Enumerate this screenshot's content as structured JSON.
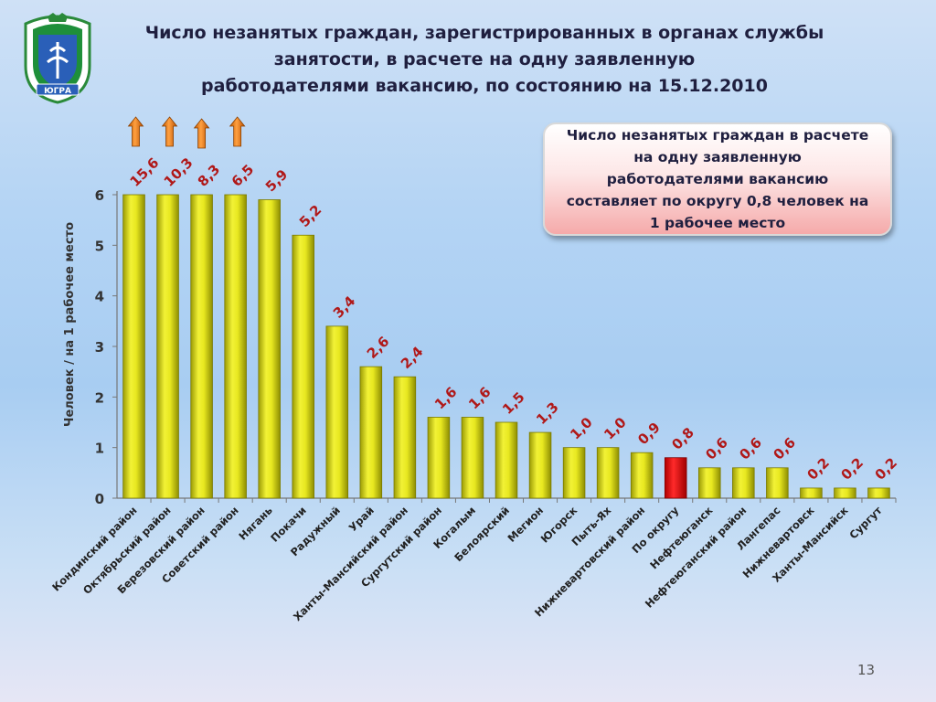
{
  "slide": {
    "title_lines": [
      "Число незанятых граждан, зарегистрированных в органах службы",
      "занятости, в расчете на одну заявленную",
      "работодателями вакансию, по состоянию на 15.12.2010"
    ],
    "callout": "Число незанятых граждан в расчете на одну заявленную работодателями вакансию составляет по округу 0,8 человек на 1 рабочее место",
    "page_number": "13",
    "emblem_text": "ЮГРА"
  },
  "colors": {
    "bar": "#e8e820",
    "bar_highlight": "#ee1111",
    "label": "#b01818",
    "arrow": "#ef8a1a"
  },
  "icons": {
    "emblem": "coat-of-arms-emblem",
    "arrow": "arrow-up-icon"
  },
  "chart_data": {
    "type": "bar",
    "title": "",
    "xlabel": "",
    "ylabel": "Человек / на 1 рабочее место",
    "ylim": [
      0,
      6
    ],
    "yticks": [
      "0",
      "1",
      "2",
      "3",
      "4",
      "5",
      "6"
    ],
    "grid": false,
    "categories": [
      "Кондинский район",
      "Октябрьский район",
      "Березовский район",
      "Советский район",
      "Нягань",
      "Покачи",
      "Радужный",
      "Урай",
      "Ханты-Мансийский район",
      "Сургутский район",
      "Когалым",
      "Белоярский",
      "Мегион",
      "Югорск",
      "Пыть-Ях",
      "Нижневартовский район",
      "По округу",
      "Нефтеюганск",
      "Нефтеюганский район",
      "Лангепас",
      "Нижневартовск",
      "Ханты-Мансийск",
      "Сургут"
    ],
    "values": [
      15.6,
      10.3,
      8.3,
      6.5,
      5.9,
      5.2,
      3.4,
      2.6,
      2.4,
      1.6,
      1.6,
      1.5,
      1.3,
      1.0,
      1.0,
      0.9,
      0.8,
      0.6,
      0.6,
      0.6,
      0.2,
      0.2,
      0.2
    ],
    "data_labels": [
      "15,6",
      "10,3",
      "8,3",
      "6,5",
      "5,9",
      "5,2",
      "3,4",
      "2,6",
      "2,4",
      "1,6",
      "1,6",
      "1,5",
      "1,3",
      "1,0",
      "1,0",
      "0,9",
      "0,8",
      "0,6",
      "0,6",
      "0,6",
      "0,2",
      "0,2",
      "0,2"
    ],
    "clipped_at_axis_max": [
      true,
      true,
      true,
      true,
      false,
      false,
      false,
      false,
      false,
      false,
      false,
      false,
      false,
      false,
      false,
      false,
      false,
      false,
      false,
      false,
      false,
      false,
      false
    ],
    "highlight_category": "По округу"
  }
}
